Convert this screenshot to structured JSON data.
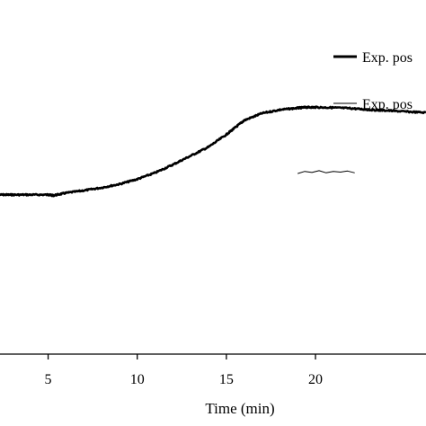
{
  "chart_data": {
    "type": "line",
    "xlabel": "Time (min)",
    "ylabel": "",
    "xlim": [
      2.3,
      26.2
    ],
    "ylim": [
      0,
      1
    ],
    "x_ticks": [
      5,
      10,
      15,
      20
    ],
    "grid": false,
    "legend_position": "top-right",
    "colors": {
      "line": "#000000"
    },
    "series": [
      {
        "name": "Exp. pos",
        "style": "thick",
        "x": [
          2.3,
          3.0,
          4.0,
          5.0,
          5.3,
          6.0,
          7.0,
          8.0,
          9.0,
          10.0,
          11.0,
          12.0,
          13.0,
          14.0,
          15.0,
          15.5,
          16.0,
          17.0,
          18.0,
          19.0,
          19.5,
          20.0,
          21.0,
          22.0,
          23.0,
          24.0,
          25.0,
          26.2
        ],
        "y": [
          0.45,
          0.45,
          0.45,
          0.45,
          0.448,
          0.455,
          0.462,
          0.47,
          0.48,
          0.494,
          0.512,
          0.535,
          0.56,
          0.585,
          0.62,
          0.64,
          0.66,
          0.68,
          0.69,
          0.695,
          0.697,
          0.697,
          0.696,
          0.694,
          0.69,
          0.688,
          0.685,
          0.682
        ]
      },
      {
        "name": "Exp. pos",
        "style": "thin",
        "x": [
          19.0,
          19.4,
          19.8,
          20.2,
          20.6,
          21.0,
          21.4,
          21.8,
          22.2
        ],
        "y": [
          0.51,
          0.516,
          0.513,
          0.518,
          0.512,
          0.516,
          0.514,
          0.517,
          0.512
        ]
      }
    ]
  }
}
